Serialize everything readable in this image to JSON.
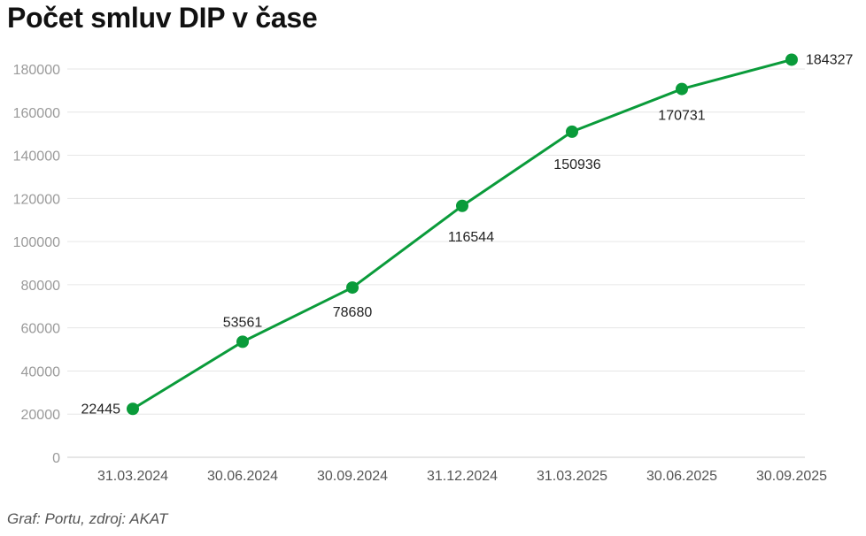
{
  "title": "Počet smluv DIP v čase",
  "footer": "Graf: Portu, zdroj: AKAT",
  "colors": {
    "series": "#0a9b3a",
    "grid": "#e6e6e6",
    "axis": "#cccccc"
  },
  "chart_data": {
    "type": "line",
    "title": "Počet smluv DIP v čase",
    "xlabel": "",
    "ylabel": "",
    "x": [
      "31.03.2024",
      "30.06.2024",
      "30.09.2024",
      "31.12.2024",
      "31.03.2025",
      "30.06.2025",
      "30.09.2025"
    ],
    "series": [
      {
        "values": [
          22445,
          53561,
          78680,
          116544,
          150936,
          170731,
          184327
        ]
      }
    ],
    "ylim": [
      0,
      180000
    ],
    "yticks": [
      0,
      20000,
      40000,
      60000,
      80000,
      100000,
      120000,
      140000,
      160000,
      180000
    ],
    "grid": true,
    "data_labels": true,
    "legend": "none"
  }
}
